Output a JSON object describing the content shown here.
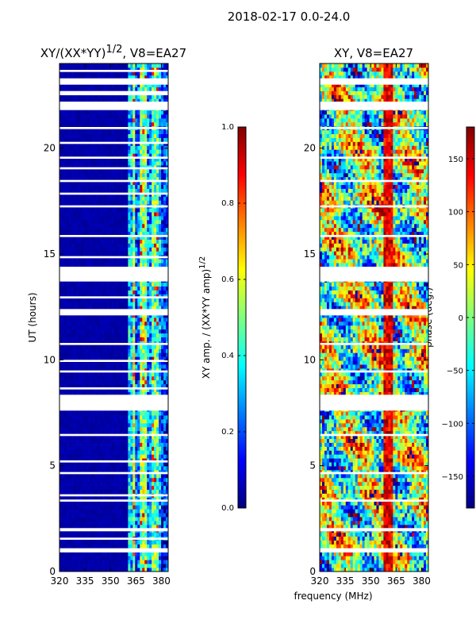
{
  "figure": {
    "suptitle": "2018-02-17 0.0-24.0",
    "xlabel": "frequency (MHz)"
  },
  "colors": {
    "axis": "#000000",
    "gap": "#ffffff",
    "jet": [
      "#00007f",
      "#0000ff",
      "#007fff",
      "#00ffff",
      "#7fff7f",
      "#ffff00",
      "#ff7f00",
      "#ff0000",
      "#7f0000"
    ]
  },
  "chart_data": [
    {
      "type": "heatmap",
      "title": "XY/(XX*YY)",
      "title_sup": "1/2",
      "title_suffix": ", V8=EA27",
      "ylabel": "UT (hours)",
      "xlim": [
        320,
        384
      ],
      "ylim": [
        0,
        24
      ],
      "xticks": [
        320,
        335,
        350,
        365,
        380
      ],
      "yticks": [
        0,
        5,
        10,
        15,
        20
      ],
      "xtick_labels": [
        "320",
        "335",
        "350",
        "365",
        "380"
      ],
      "ytick_labels": [
        "0",
        "5",
        "10",
        "15",
        "20"
      ],
      "colorbar": {
        "label": "XY amp. / (XX*YY amp)",
        "label_sup": "1/2",
        "range": [
          0,
          1
        ],
        "ticks": [
          0.0,
          0.2,
          0.4,
          0.6,
          0.8,
          1.0
        ],
        "tick_labels": [
          "0.0",
          "0.2",
          "0.4",
          "0.6",
          "0.8",
          "1.0"
        ]
      },
      "bands": [
        {
          "f0": 320,
          "f1": 361,
          "level": 0.02
        },
        {
          "f0": 361,
          "f1": 363,
          "level": 0.3
        },
        {
          "f0": 363,
          "f1": 365,
          "level": 0.55
        },
        {
          "f0": 365,
          "f1": 367,
          "level": 0.2
        },
        {
          "f0": 367,
          "f1": 371,
          "level": 0.5
        },
        {
          "f0": 371,
          "f1": 374,
          "level": 0.25
        },
        {
          "f0": 374,
          "f1": 378,
          "level": 0.45
        },
        {
          "f0": 378,
          "f1": 380,
          "level": 0.3
        },
        {
          "f0": 380,
          "f1": 384,
          "level": 0.15
        }
      ],
      "flagged_hours": [
        [
          0.9,
          1.1
        ],
        [
          1.5,
          1.6
        ],
        [
          1.9,
          2.05
        ],
        [
          3.3,
          3.4
        ],
        [
          3.55,
          3.65
        ],
        [
          4.6,
          4.7
        ],
        [
          5.15,
          5.25
        ],
        [
          6.4,
          6.5
        ],
        [
          7.6,
          8.35
        ],
        [
          8.6,
          8.7
        ],
        [
          9.4,
          9.5
        ],
        [
          9.9,
          10.0
        ],
        [
          10.7,
          10.8
        ],
        [
          12.1,
          12.4
        ],
        [
          12.9,
          13.0
        ],
        [
          13.7,
          14.4
        ],
        [
          14.8,
          14.9
        ],
        [
          15.8,
          15.9
        ],
        [
          17.2,
          17.3
        ],
        [
          17.8,
          17.9
        ],
        [
          18.4,
          18.5
        ],
        [
          19.0,
          19.1
        ],
        [
          19.5,
          19.6
        ],
        [
          20.2,
          20.3
        ],
        [
          20.9,
          21.0
        ],
        [
          21.8,
          22.2
        ],
        [
          22.5,
          22.7
        ],
        [
          23.0,
          23.3
        ],
        [
          23.6,
          23.7
        ]
      ]
    },
    {
      "type": "heatmap",
      "title": "XY, V8=EA27",
      "ylabel": "",
      "xlim": [
        320,
        384
      ],
      "ylim": [
        0,
        24
      ],
      "xticks": [
        320,
        335,
        350,
        365,
        380
      ],
      "yticks": [
        0,
        5,
        10,
        15,
        20
      ],
      "xtick_labels": [
        "320",
        "335",
        "350",
        "365",
        "380"
      ],
      "ytick_labels": [
        "0",
        "5",
        "10",
        "15",
        "20"
      ],
      "colorbar": {
        "label": "phase (deg.)",
        "range": [
          -180,
          180
        ],
        "ticks": [
          -150,
          -100,
          -50,
          0,
          50,
          100,
          150
        ],
        "tick_labels": [
          "−150",
          "−100",
          "−50",
          "0",
          "50",
          "100",
          "150"
        ]
      },
      "flagged_hours": [
        [
          0.9,
          1.1
        ],
        [
          1.9,
          2.05
        ],
        [
          3.3,
          3.4
        ],
        [
          4.6,
          4.7
        ],
        [
          6.4,
          6.5
        ],
        [
          7.6,
          8.35
        ],
        [
          9.4,
          9.5
        ],
        [
          10.7,
          10.8
        ],
        [
          12.1,
          12.4
        ],
        [
          13.7,
          14.4
        ],
        [
          15.8,
          15.9
        ],
        [
          17.2,
          17.3
        ],
        [
          18.4,
          18.5
        ],
        [
          19.5,
          19.6
        ],
        [
          20.9,
          21.0
        ],
        [
          21.8,
          22.2
        ],
        [
          23.0,
          23.3
        ]
      ]
    }
  ]
}
